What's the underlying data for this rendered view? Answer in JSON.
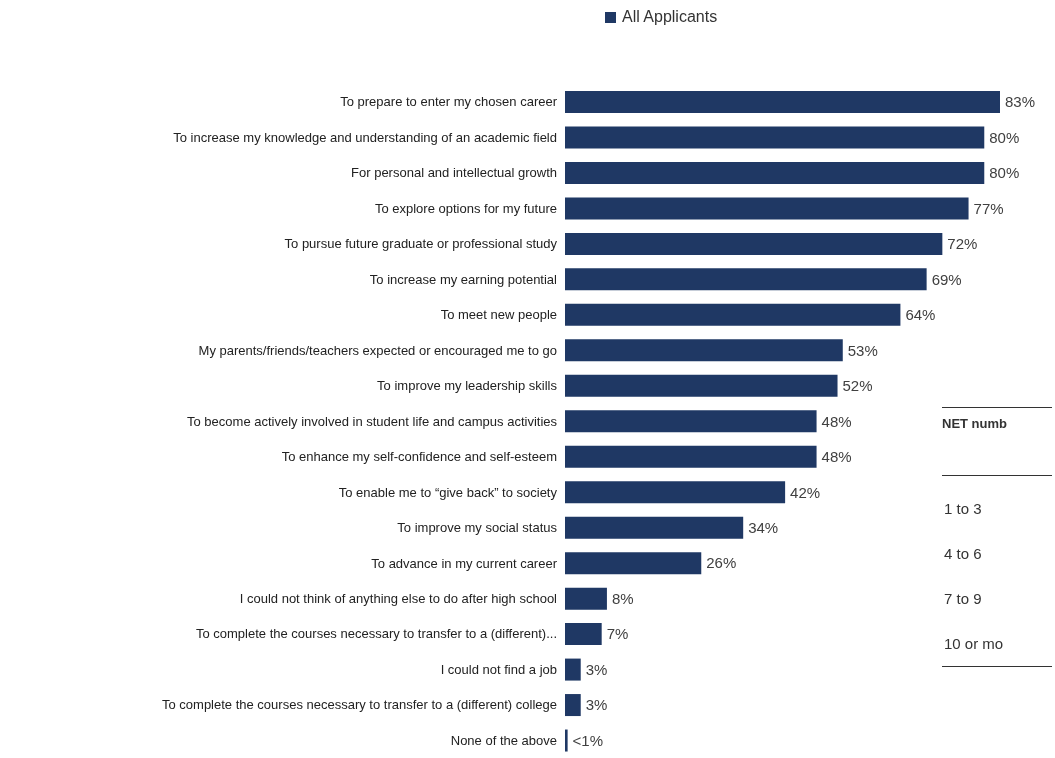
{
  "chart_data": {
    "type": "bar",
    "orientation": "horizontal",
    "legend": "top",
    "categories": [
      "To prepare to enter my chosen career",
      "To increase my knowledge and understanding of an academic field",
      "For personal and intellectual growth",
      "To explore options for my future",
      "To pursue future graduate or professional study",
      "To increase my earning potential",
      "To meet new people",
      "My parents/friends/teachers expected or encouraged me to go",
      "To improve my leadership skills",
      "To become actively involved in student life and campus activities",
      "To enhance my self-confidence and self-esteem",
      "To enable me to “give back” to society",
      "To improve my social status",
      "To advance in my current career",
      "I could not think of anything else to do after high school",
      "To complete the courses necessary to transfer to a (different)...",
      "I could not find a job",
      "To complete the courses necessary to transfer to a (different) college",
      "None of the above"
    ],
    "series": [
      {
        "name": "All Applicants",
        "color": "#1f3864",
        "values": [
          83,
          80,
          80,
          77,
          72,
          69,
          64,
          53,
          52,
          48,
          48,
          42,
          34,
          26,
          8,
          7,
          3,
          3,
          0.5
        ],
        "value_labels": [
          "83%",
          "80%",
          "80%",
          "77%",
          "72%",
          "69%",
          "64%",
          "53%",
          "52%",
          "48%",
          "48%",
          "42%",
          "34%",
          "26%",
          "8%",
          "7%",
          "3%",
          "3%",
          "<1%"
        ]
      }
    ],
    "annotations": [
      "NET numb",
      "1 to 3",
      "4 to 6",
      "7 to 9",
      "10 or mo"
    ]
  }
}
